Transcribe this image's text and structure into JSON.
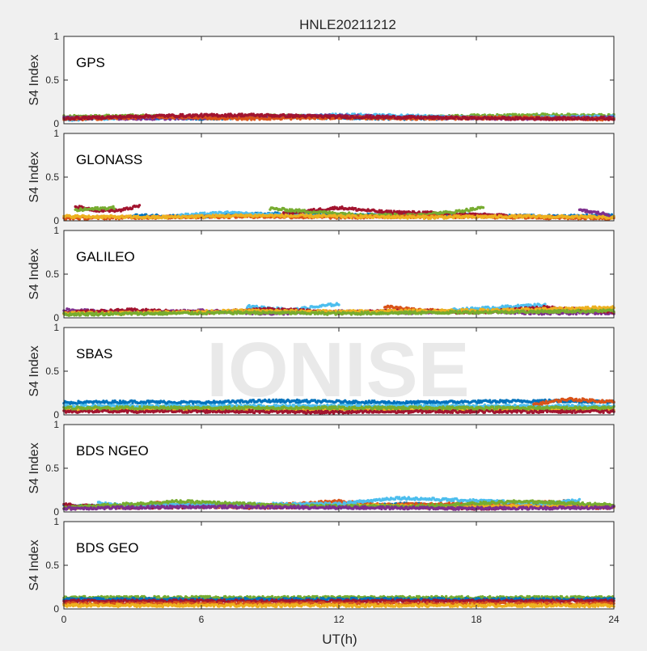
{
  "chart_data": {
    "type": "scatter",
    "title": "HNLE20211212",
    "xlabel": "UT(h)",
    "ylabel": "S4 Index",
    "xlim": [
      0,
      24
    ],
    "ylim": [
      0,
      1
    ],
    "xticks": [
      0,
      6,
      12,
      18,
      24
    ],
    "yticks": [
      0,
      0.5,
      1
    ],
    "ytick_labels": [
      "0",
      "0.5",
      "1"
    ],
    "grid": false,
    "watermark": "IONISE",
    "series_colors": [
      "#0072bd",
      "#d95319",
      "#edb120",
      "#7e2f8e",
      "#77ac30",
      "#4dbeee",
      "#a2142f"
    ],
    "panels": [
      {
        "label": "GPS",
        "tracks": [
          {
            "color_index": 0,
            "x": [
              0,
              3,
              6,
              9,
              12,
              15,
              18,
              21,
              24
            ],
            "y": [
              0.06,
              0.07,
              0.06,
              0.08,
              0.07,
              0.06,
              0.07,
              0.08,
              0.06
            ]
          },
          {
            "color_index": 4,
            "x": [
              0,
              3,
              6,
              9,
              12,
              15,
              18,
              21,
              24
            ],
            "y": [
              0.08,
              0.09,
              0.07,
              0.09,
              0.08,
              0.07,
              0.09,
              0.1,
              0.09
            ]
          },
          {
            "color_index": 5,
            "x": [
              0,
              3,
              6,
              9,
              12,
              15,
              18,
              21,
              24
            ],
            "y": [
              0.05,
              0.07,
              0.08,
              0.07,
              0.1,
              0.09,
              0.07,
              0.07,
              0.08
            ]
          },
          {
            "color_index": 3,
            "x": [
              0,
              4,
              8,
              12,
              16,
              20,
              24
            ],
            "y": [
              0.07,
              0.06,
              0.08,
              0.09,
              0.07,
              0.06,
              0.07
            ]
          },
          {
            "color_index": 1,
            "x": [
              0,
              4,
              8,
              12,
              16,
              20,
              24
            ],
            "y": [
              0.05,
              0.08,
              0.06,
              0.07,
              0.06,
              0.07,
              0.05
            ]
          },
          {
            "color_index": 6,
            "x": [
              0,
              4,
              8,
              12,
              16,
              20,
              24
            ],
            "y": [
              0.06,
              0.09,
              0.1,
              0.08,
              0.07,
              0.06,
              0.06
            ]
          }
        ]
      },
      {
        "label": "GLONASS",
        "tracks": [
          {
            "color_index": 6,
            "x": [
              0.5,
              1.5,
              2.5,
              3.3
            ],
            "y": [
              0.16,
              0.12,
              0.12,
              0.17
            ]
          },
          {
            "color_index": 4,
            "x": [
              0.5,
              1.5,
              2.2
            ],
            "y": [
              0.12,
              0.14,
              0.15
            ]
          },
          {
            "color_index": 0,
            "x": [
              3,
              6,
              9,
              12,
              15,
              18,
              21,
              24
            ],
            "y": [
              0.06,
              0.05,
              0.08,
              0.06,
              0.07,
              0.06,
              0.05,
              0.06
            ]
          },
          {
            "color_index": 5,
            "x": [
              5,
              7,
              9,
              11
            ],
            "y": [
              0.06,
              0.09,
              0.07,
              0.05
            ]
          },
          {
            "color_index": 6,
            "x": [
              9.5,
              12,
              14,
              16,
              18,
              20
            ],
            "y": [
              0.08,
              0.15,
              0.1,
              0.09,
              0.07,
              0.05
            ]
          },
          {
            "color_index": 4,
            "x": [
              9,
              11,
              13,
              15,
              17,
              18.3
            ],
            "y": [
              0.14,
              0.1,
              0.07,
              0.06,
              0.1,
              0.15
            ]
          },
          {
            "color_index": 1,
            "x": [
              0,
              4,
              8,
              12,
              16,
              20,
              24
            ],
            "y": [
              0.03,
              0.04,
              0.05,
              0.04,
              0.05,
              0.04,
              0.03
            ]
          },
          {
            "color_index": 2,
            "x": [
              0,
              4,
              8,
              12,
              16,
              20,
              24
            ],
            "y": [
              0.05,
              0.04,
              0.06,
              0.05,
              0.04,
              0.05,
              0.04
            ]
          },
          {
            "color_index": 3,
            "x": [
              22.5,
              23.3,
              23.8
            ],
            "y": [
              0.12,
              0.09,
              0.07
            ]
          }
        ]
      },
      {
        "label": "GALILEO",
        "tracks": [
          {
            "color_index": 3,
            "x": [
              0,
              3,
              6,
              9,
              12,
              15,
              18,
              21,
              24
            ],
            "y": [
              0.09,
              0.06,
              0.08,
              0.05,
              0.07,
              0.06,
              0.08,
              0.05,
              0.06
            ]
          },
          {
            "color_index": 5,
            "x": [
              8,
              10,
              12
            ],
            "y": [
              0.13,
              0.09,
              0.16
            ]
          },
          {
            "color_index": 5,
            "x": [
              17,
              19,
              21
            ],
            "y": [
              0.09,
              0.12,
              0.15
            ]
          },
          {
            "color_index": 1,
            "x": [
              14,
              15.5,
              17
            ],
            "y": [
              0.13,
              0.09,
              0.07
            ]
          },
          {
            "color_index": 6,
            "x": [
              0,
              3,
              6,
              9,
              12,
              15,
              18,
              21,
              24
            ],
            "y": [
              0.06,
              0.09,
              0.06,
              0.1,
              0.06,
              0.08,
              0.06,
              0.12,
              0.07
            ]
          },
          {
            "color_index": 2,
            "x": [
              0,
              4,
              8,
              12,
              16,
              20,
              24
            ],
            "y": [
              0.05,
              0.06,
              0.08,
              0.07,
              0.08,
              0.09,
              0.12
            ]
          },
          {
            "color_index": 4,
            "x": [
              0,
              4,
              8,
              12,
              16,
              20,
              24
            ],
            "y": [
              0.04,
              0.05,
              0.06,
              0.05,
              0.06,
              0.07,
              0.08
            ]
          }
        ]
      },
      {
        "label": "SBAS",
        "tracks": [
          {
            "color_index": 0,
            "x": [
              0,
              3,
              6,
              9,
              12,
              15,
              18,
              21,
              24
            ],
            "y": [
              0.14,
              0.15,
              0.14,
              0.16,
              0.15,
              0.14,
              0.15,
              0.16,
              0.15
            ]
          },
          {
            "color_index": 5,
            "x": [
              0,
              4,
              8,
              12,
              16,
              20,
              24
            ],
            "y": [
              0.1,
              0.1,
              0.1,
              0.1,
              0.1,
              0.1,
              0.1
            ]
          },
          {
            "color_index": 2,
            "x": [
              0,
              4,
              8,
              12,
              16,
              20,
              24
            ],
            "y": [
              0.06,
              0.06,
              0.06,
              0.06,
              0.06,
              0.06,
              0.06
            ]
          },
          {
            "color_index": 6,
            "x": [
              0,
              4,
              8,
              12,
              16,
              20,
              24
            ],
            "y": [
              0.04,
              0.04,
              0.04,
              0.03,
              0.04,
              0.04,
              0.04
            ]
          },
          {
            "color_index": 4,
            "x": [
              0,
              4,
              8,
              12,
              16,
              20,
              24
            ],
            "y": [
              0.08,
              0.08,
              0.08,
              0.08,
              0.08,
              0.08,
              0.08
            ]
          },
          {
            "color_index": 1,
            "x": [
              20.5,
              22,
              24
            ],
            "y": [
              0.12,
              0.18,
              0.15
            ]
          }
        ]
      },
      {
        "label": "BDS NGEO",
        "tracks": [
          {
            "color_index": 0,
            "x": [
              0,
              3,
              6,
              9,
              12,
              15,
              18,
              21,
              24
            ],
            "y": [
              0.07,
              0.06,
              0.08,
              0.07,
              0.06,
              0.09,
              0.06,
              0.08,
              0.07
            ]
          },
          {
            "color_index": 6,
            "x": [
              0,
              3,
              6,
              9,
              12,
              15,
              18,
              21,
              24
            ],
            "y": [
              0.08,
              0.05,
              0.06,
              0.05,
              0.07,
              0.06,
              0.04,
              0.06,
              0.05
            ]
          },
          {
            "color_index": 1,
            "x": [
              4,
              6,
              8,
              12,
              14,
              20,
              22
            ],
            "y": [
              0.1,
              0.08,
              0.06,
              0.12,
              0.08,
              0.1,
              0.12
            ]
          },
          {
            "color_index": 2,
            "x": [
              0,
              4,
              8,
              12,
              16,
              20,
              24
            ],
            "y": [
              0.05,
              0.07,
              0.06,
              0.08,
              0.06,
              0.07,
              0.06
            ]
          },
          {
            "color_index": 5,
            "x": [
              1.5,
              2.5,
              12,
              14.5,
              21,
              22.5
            ],
            "y": [
              0.1,
              0.08,
              0.09,
              0.16,
              0.1,
              0.13
            ]
          },
          {
            "color_index": 4,
            "x": [
              0,
              5,
              10,
              15,
              20,
              24
            ],
            "y": [
              0.05,
              0.12,
              0.07,
              0.06,
              0.12,
              0.08
            ]
          },
          {
            "color_index": 3,
            "x": [
              0,
              6,
              12,
              18,
              24
            ],
            "y": [
              0.04,
              0.06,
              0.05,
              0.04,
              0.05
            ]
          }
        ]
      },
      {
        "label": "BDS GEO",
        "tracks": [
          {
            "color_index": 4,
            "x": [
              0,
              4,
              8,
              12,
              16,
              20,
              24
            ],
            "y": [
              0.13,
              0.13,
              0.13,
              0.13,
              0.13,
              0.13,
              0.13
            ]
          },
          {
            "color_index": 0,
            "x": [
              0,
              4,
              8,
              12,
              16,
              20,
              24
            ],
            "y": [
              0.11,
              0.11,
              0.11,
              0.11,
              0.11,
              0.11,
              0.11
            ]
          },
          {
            "color_index": 6,
            "x": [
              0,
              4,
              8,
              12,
              16,
              20,
              24
            ],
            "y": [
              0.09,
              0.09,
              0.09,
              0.09,
              0.09,
              0.09,
              0.09
            ]
          },
          {
            "color_index": 1,
            "x": [
              0,
              4,
              8,
              12,
              16,
              20,
              24
            ],
            "y": [
              0.06,
              0.06,
              0.06,
              0.06,
              0.06,
              0.06,
              0.06
            ]
          },
          {
            "color_index": 2,
            "x": [
              0,
              4,
              8,
              12,
              16,
              20,
              24
            ],
            "y": [
              0.04,
              0.04,
              0.04,
              0.04,
              0.04,
              0.04,
              0.04
            ]
          }
        ]
      }
    ]
  }
}
